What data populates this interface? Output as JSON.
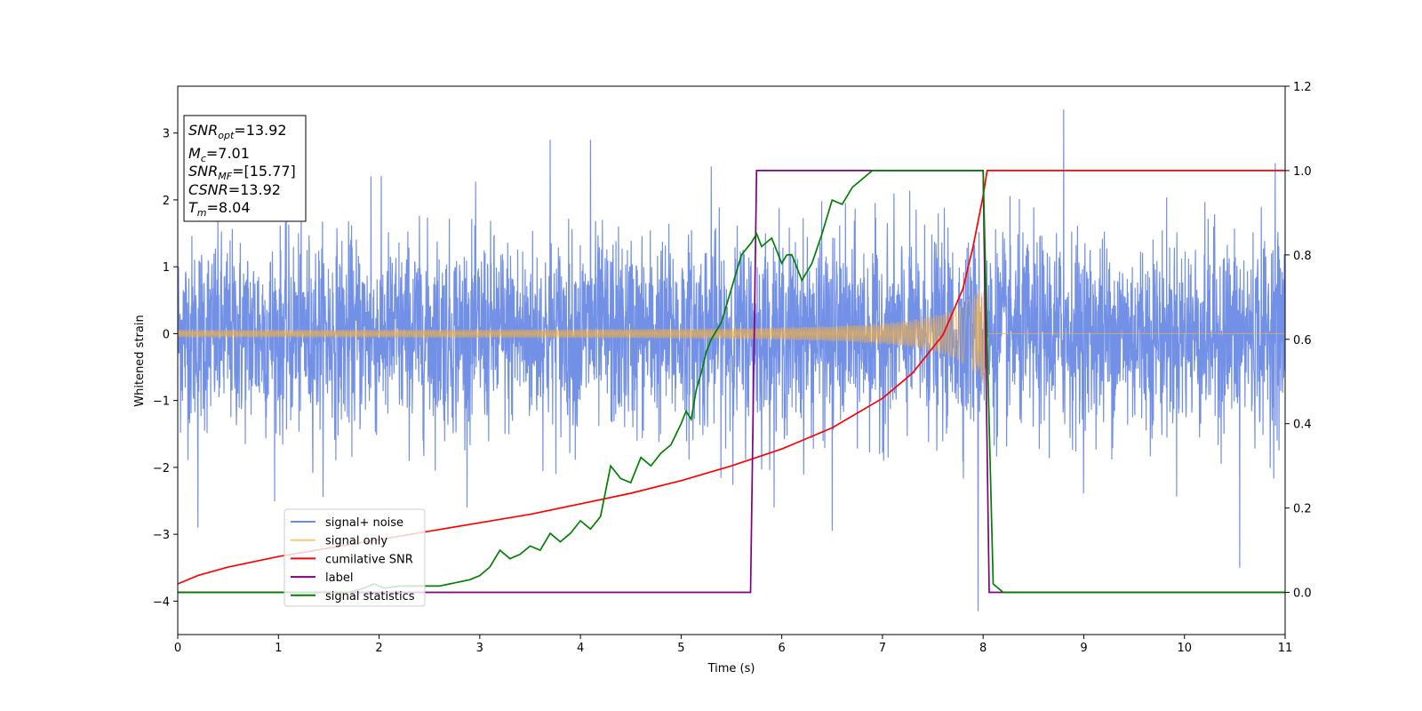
{
  "chart_data": {
    "type": "line",
    "xlabel": "Time (s)",
    "ylabel": "Whitened strain",
    "xlim": [
      0,
      11
    ],
    "ylim": [
      -4.5,
      3.7
    ],
    "y2lim": [
      -0.1,
      1.2
    ],
    "x_ticks": [
      "0",
      "1",
      "2",
      "3",
      "4",
      "5",
      "6",
      "7",
      "8",
      "9",
      "10",
      "11"
    ],
    "y_ticks": [
      "3",
      "2",
      "1",
      "0",
      "−1",
      "−2",
      "−3",
      "−4"
    ],
    "y2_ticks": [
      "0.0",
      "0.2",
      "0.4",
      "0.6",
      "0.8",
      "1.0",
      "1.2"
    ],
    "grid": false,
    "legend_position": "lower-left",
    "annotation": {
      "snr_opt": {
        "label": "SNR",
        "sub": "opt",
        "value": "=13.92"
      },
      "mc": {
        "label": "M",
        "sub": "c",
        "value": "=7.01"
      },
      "snr_mf": {
        "label": "SNR",
        "sub": "MF",
        "value": "=[15.77]"
      },
      "csnr": {
        "label": "CSNR",
        "sub": "",
        "value": "=13.92"
      },
      "tm": {
        "label": "T",
        "sub": "m",
        "value": "=8.04"
      }
    },
    "series": [
      {
        "name": "signal+ noise",
        "axis": "left",
        "color": "#6b8ae6",
        "description_kind": "noise",
        "envelope_typical": 1.6,
        "extremes": [
          {
            "x": 0.2,
            "y": -2.9
          },
          {
            "x": 1.92,
            "y": 2.35
          },
          {
            "x": 3.7,
            "y": 2.9
          },
          {
            "x": 4.1,
            "y": 2.9
          },
          {
            "x": 5.3,
            "y": 2.5
          },
          {
            "x": 6.5,
            "y": -2.95
          },
          {
            "x": 7.95,
            "y": -4.15
          },
          {
            "x": 8.8,
            "y": 3.35
          },
          {
            "x": 10.55,
            "y": -3.5
          },
          {
            "x": 10.9,
            "y": 2.55
          }
        ]
      },
      {
        "name": "signal only",
        "axis": "left",
        "color": "#f5b041",
        "description_kind": "chirp",
        "amplitude_start": 0.05,
        "amplitude_end": 0.85,
        "merger_time": 8.04
      },
      {
        "name": "cumilative SNR",
        "axis": "right",
        "color": "#ff0000",
        "x": [
          0,
          0.2,
          0.5,
          1,
          1.5,
          2,
          2.5,
          3,
          3.5,
          4,
          4.5,
          5,
          5.5,
          6,
          6.5,
          7,
          7.3,
          7.6,
          7.8,
          7.9,
          8.0,
          8.04,
          8.5,
          9,
          10,
          11
        ],
        "y": [
          0.02,
          0.04,
          0.06,
          0.085,
          0.105,
          0.125,
          0.145,
          0.165,
          0.185,
          0.21,
          0.235,
          0.265,
          0.3,
          0.34,
          0.39,
          0.46,
          0.52,
          0.61,
          0.72,
          0.82,
          0.94,
          1.0,
          1.0,
          1.0,
          1.0,
          1.0
        ]
      },
      {
        "name": "label",
        "axis": "right",
        "color": "#800080",
        "x": [
          0,
          5.69,
          5.75,
          8.0,
          8.06,
          11
        ],
        "y": [
          0.0,
          0.0,
          1.0,
          1.0,
          0.0,
          0.0
        ]
      },
      {
        "name": "signal statistics",
        "axis": "right",
        "color": "#008000",
        "x": [
          0,
          1.7,
          1.85,
          1.95,
          2.05,
          2.2,
          2.4,
          2.6,
          2.7,
          2.8,
          2.9,
          3.0,
          3.1,
          3.2,
          3.3,
          3.4,
          3.5,
          3.6,
          3.7,
          3.8,
          3.9,
          4.0,
          4.1,
          4.2,
          4.3,
          4.4,
          4.5,
          4.6,
          4.7,
          4.8,
          4.9,
          5.0,
          5.05,
          5.1,
          5.15,
          5.2,
          5.25,
          5.3,
          5.4,
          5.5,
          5.6,
          5.7,
          5.75,
          5.8,
          5.9,
          6.0,
          6.05,
          6.1,
          6.2,
          6.3,
          6.4,
          6.5,
          6.6,
          6.7,
          6.8,
          6.9,
          7.0,
          7.2,
          7.5,
          7.6,
          7.8,
          8.0,
          8.05,
          8.1,
          8.2,
          11
        ],
        "y": [
          0.0,
          0.0,
          0.01,
          0.02,
          0.01,
          0.015,
          0.015,
          0.015,
          0.02,
          0.025,
          0.03,
          0.04,
          0.06,
          0.1,
          0.08,
          0.09,
          0.11,
          0.1,
          0.14,
          0.12,
          0.14,
          0.17,
          0.15,
          0.18,
          0.3,
          0.27,
          0.26,
          0.32,
          0.3,
          0.33,
          0.35,
          0.4,
          0.43,
          0.41,
          0.48,
          0.52,
          0.57,
          0.6,
          0.64,
          0.72,
          0.8,
          0.83,
          0.85,
          0.82,
          0.84,
          0.78,
          0.8,
          0.8,
          0.74,
          0.78,
          0.85,
          0.93,
          0.92,
          0.96,
          0.98,
          1.0,
          1.0,
          1.0,
          1.0,
          1.0,
          1.0,
          1.0,
          0.5,
          0.02,
          0.0,
          0.0
        ]
      }
    ]
  }
}
